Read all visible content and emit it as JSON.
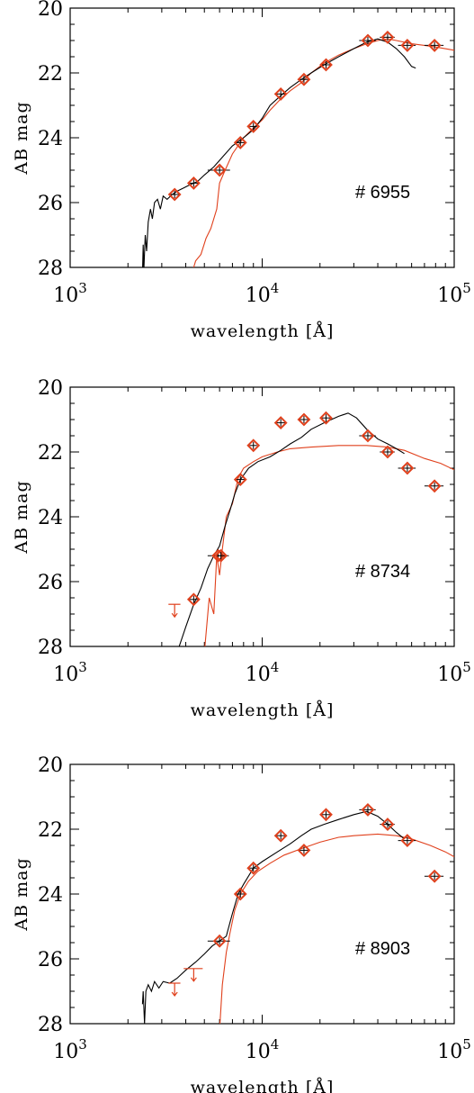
{
  "chart_data": [
    {
      "type": "line",
      "label": "# 6955",
      "xlabel": "wavelength [Å]",
      "ylabel": "AB mag",
      "xscale": "log",
      "xlim": [
        1000,
        100000
      ],
      "ylim": [
        28,
        20
      ],
      "x_ticks": [
        {
          "mantissa": "10",
          "exponent": "3",
          "value": 1000
        },
        {
          "mantissa": "10",
          "exponent": "4",
          "value": 10000
        },
        {
          "mantissa": "10",
          "exponent": "5",
          "value": 100000
        }
      ],
      "y_ticks": [
        "20",
        "22",
        "24",
        "26",
        "28"
      ],
      "colors": {
        "observed": "#000000",
        "model": "#e0401c"
      },
      "black_sed": [
        [
          2380,
          28.2
        ],
        [
          2400,
          27.3
        ],
        [
          2420,
          28.1
        ],
        [
          2460,
          27.0
        ],
        [
          2500,
          27.5
        ],
        [
          2550,
          26.6
        ],
        [
          2620,
          26.2
        ],
        [
          2680,
          26.5
        ],
        [
          2750,
          26.0
        ],
        [
          2850,
          25.9
        ],
        [
          2950,
          26.2
        ],
        [
          3050,
          25.8
        ],
        [
          3200,
          25.9
        ],
        [
          3400,
          25.75
        ],
        [
          3600,
          25.65
        ],
        [
          3900,
          25.55
        ],
        [
          4200,
          25.45
        ],
        [
          4600,
          25.35
        ],
        [
          5000,
          25.15
        ],
        [
          5600,
          24.9
        ],
        [
          6200,
          24.6
        ],
        [
          7000,
          24.25
        ],
        [
          8000,
          24.0
        ],
        [
          9000,
          23.75
        ],
        [
          10000,
          23.4
        ],
        [
          11000,
          23.0
        ],
        [
          12500,
          22.7
        ],
        [
          14000,
          22.45
        ],
        [
          16000,
          22.2
        ],
        [
          18000,
          22.0
        ],
        [
          21000,
          21.75
        ],
        [
          25000,
          21.5
        ],
        [
          30000,
          21.25
        ],
        [
          35000,
          21.05
        ],
        [
          40000,
          20.95
        ],
        [
          45000,
          21.05
        ],
        [
          50000,
          21.25
        ],
        [
          55000,
          21.5
        ],
        [
          60000,
          21.8
        ],
        [
          63000,
          21.85
        ]
      ],
      "red_sed": [
        [
          4300,
          28.2
        ],
        [
          4500,
          27.8
        ],
        [
          4800,
          27.6
        ],
        [
          5100,
          27.1
        ],
        [
          5400,
          26.8
        ],
        [
          5800,
          26.2
        ],
        [
          6000,
          25.4
        ],
        [
          6300,
          25.1
        ],
        [
          7000,
          24.5
        ],
        [
          8000,
          24.0
        ],
        [
          9000,
          23.7
        ],
        [
          10000,
          23.45
        ],
        [
          11000,
          23.15
        ],
        [
          12500,
          22.8
        ],
        [
          14000,
          22.55
        ],
        [
          16000,
          22.3
        ],
        [
          18000,
          22.0
        ],
        [
          21000,
          21.7
        ],
        [
          25000,
          21.45
        ],
        [
          30000,
          21.25
        ],
        [
          35000,
          21.1
        ],
        [
          40000,
          21.0
        ],
        [
          45000,
          20.95
        ],
        [
          50000,
          21.0
        ],
        [
          60000,
          21.1
        ],
        [
          70000,
          21.15
        ],
        [
          80000,
          21.2
        ],
        [
          100000,
          21.3
        ]
      ],
      "photometry": [
        {
          "x": 3500,
          "y": 25.75,
          "xerr": [
            3250,
            3750
          ]
        },
        {
          "x": 4400,
          "y": 25.4,
          "xerr": [
            4100,
            4700
          ]
        },
        {
          "x": 6000,
          "y": 25.0,
          "xerr": [
            5200,
            6800
          ]
        },
        {
          "x": 7700,
          "y": 24.15,
          "xerr": [
            7300,
            8100
          ]
        },
        {
          "x": 9000,
          "y": 23.65,
          "xerr": [
            8600,
            9400
          ]
        },
        {
          "x": 12500,
          "y": 22.65,
          "xerr": [
            11600,
            13400
          ]
        },
        {
          "x": 16500,
          "y": 22.2,
          "xerr": [
            15300,
            17700
          ]
        },
        {
          "x": 21500,
          "y": 21.75,
          "xerr": [
            20000,
            23000
          ]
        },
        {
          "x": 35500,
          "y": 21.0,
          "xerr": [
            32000,
            39000
          ]
        },
        {
          "x": 45000,
          "y": 20.9,
          "xerr": [
            41000,
            49000
          ]
        },
        {
          "x": 57000,
          "y": 21.15,
          "xerr": [
            51000,
            63000
          ]
        },
        {
          "x": 79000,
          "y": 21.15,
          "xerr": [
            70000,
            88000
          ]
        }
      ],
      "upper_limits": []
    },
    {
      "type": "line",
      "label": "# 8734",
      "xlabel": "wavelength [Å]",
      "ylabel": "AB mag",
      "xscale": "log",
      "xlim": [
        1000,
        100000
      ],
      "ylim": [
        28,
        20
      ],
      "x_ticks": [
        {
          "mantissa": "10",
          "exponent": "3",
          "value": 1000
        },
        {
          "mantissa": "10",
          "exponent": "4",
          "value": 10000
        },
        {
          "mantissa": "10",
          "exponent": "5",
          "value": 100000
        }
      ],
      "y_ticks": [
        "20",
        "22",
        "24",
        "26",
        "28"
      ],
      "colors": {
        "observed": "#000000",
        "model": "#e0401c"
      },
      "black_sed": [
        [
          3600,
          28.2
        ],
        [
          4000,
          27.4
        ],
        [
          4400,
          26.7
        ],
        [
          4800,
          26.2
        ],
        [
          5200,
          25.6
        ],
        [
          5600,
          25.2
        ],
        [
          6000,
          24.9
        ],
        [
          6400,
          24.3
        ],
        [
          6800,
          23.8
        ],
        [
          7200,
          23.3
        ],
        [
          7700,
          22.85
        ],
        [
          8500,
          22.5
        ],
        [
          9500,
          22.3
        ],
        [
          11000,
          22.15
        ],
        [
          12500,
          21.95
        ],
        [
          14000,
          21.75
        ],
        [
          16000,
          21.55
        ],
        [
          18000,
          21.3
        ],
        [
          21000,
          21.1
        ],
        [
          25000,
          20.9
        ],
        [
          28000,
          20.8
        ],
        [
          31000,
          20.95
        ],
        [
          35000,
          21.3
        ],
        [
          40000,
          21.6
        ],
        [
          45000,
          21.75
        ],
        [
          50000,
          21.9
        ],
        [
          55000,
          22.05
        ]
      ],
      "red_sed": [
        [
          5000,
          28.2
        ],
        [
          5300,
          26.5
        ],
        [
          5600,
          27.0
        ],
        [
          5800,
          25.2
        ],
        [
          6000,
          25.8
        ],
        [
          6200,
          25.0
        ],
        [
          6500,
          24.0
        ],
        [
          7000,
          23.6
        ],
        [
          7500,
          22.8
        ],
        [
          8000,
          22.5
        ],
        [
          9000,
          22.3
        ],
        [
          10000,
          22.15
        ],
        [
          12000,
          22.0
        ],
        [
          14000,
          21.9
        ],
        [
          18000,
          21.85
        ],
        [
          25000,
          21.8
        ],
        [
          35000,
          21.8
        ],
        [
          45000,
          21.85
        ],
        [
          55000,
          21.95
        ],
        [
          70000,
          22.2
        ],
        [
          85000,
          22.35
        ],
        [
          100000,
          22.55
        ]
      ],
      "photometry": [
        {
          "x": 4400,
          "y": 26.55,
          "xerr": [
            4100,
            4700
          ]
        },
        {
          "x": 5900,
          "y": 25.2,
          "xerr": [
            5200,
            6700
          ]
        },
        {
          "x": 6100,
          "y": 25.2,
          "xerr": [
            5800,
            6400
          ]
        },
        {
          "x": 7700,
          "y": 22.85,
          "xerr": [
            7300,
            8100
          ]
        },
        {
          "x": 9000,
          "y": 21.8,
          "xerr": [
            8600,
            9400
          ]
        },
        {
          "x": 12500,
          "y": 21.1,
          "xerr": [
            11600,
            13400
          ]
        },
        {
          "x": 16500,
          "y": 21.0,
          "xerr": [
            15300,
            17700
          ]
        },
        {
          "x": 21500,
          "y": 20.95,
          "xerr": [
            20000,
            23000
          ]
        },
        {
          "x": 35500,
          "y": 21.5,
          "xerr": [
            32000,
            39000
          ]
        },
        {
          "x": 45000,
          "y": 22.0,
          "xerr": [
            41000,
            49000
          ]
        },
        {
          "x": 57000,
          "y": 22.5,
          "xerr": [
            51000,
            63000
          ]
        },
        {
          "x": 79000,
          "y": 23.05,
          "xerr": [
            70000,
            88000
          ]
        }
      ],
      "upper_limits": [
        {
          "x": 3500,
          "y": 26.7,
          "xerr": [
            3250,
            3750
          ]
        }
      ]
    },
    {
      "type": "line",
      "label": "# 8903",
      "xlabel": "wavelength [Å]",
      "ylabel": "AB mag",
      "xscale": "log",
      "xlim": [
        1000,
        100000
      ],
      "ylim": [
        28,
        20
      ],
      "x_ticks": [
        {
          "mantissa": "10",
          "exponent": "3",
          "value": 1000
        },
        {
          "mantissa": "10",
          "exponent": "4",
          "value": 10000
        },
        {
          "mantissa": "10",
          "exponent": "5",
          "value": 100000
        }
      ],
      "y_ticks": [
        "20",
        "22",
        "24",
        "26",
        "28"
      ],
      "colors": {
        "observed": "#000000",
        "model": "#e0401c"
      },
      "black_sed": [
        [
          2380,
          27.4
        ],
        [
          2400,
          27.0
        ],
        [
          2440,
          28.0
        ],
        [
          2480,
          27.0
        ],
        [
          2550,
          26.8
        ],
        [
          2650,
          27.0
        ],
        [
          2750,
          26.7
        ],
        [
          2900,
          26.9
        ],
        [
          3050,
          26.7
        ],
        [
          3300,
          26.75
        ],
        [
          3600,
          26.6
        ],
        [
          4000,
          26.35
        ],
        [
          4500,
          26.1
        ],
        [
          5000,
          25.85
        ],
        [
          5500,
          25.6
        ],
        [
          6000,
          25.45
        ],
        [
          6500,
          25.3
        ],
        [
          7000,
          24.6
        ],
        [
          7500,
          24.0
        ],
        [
          8000,
          23.7
        ],
        [
          9000,
          23.2
        ],
        [
          10000,
          23.0
        ],
        [
          12000,
          22.7
        ],
        [
          14000,
          22.45
        ],
        [
          16000,
          22.2
        ],
        [
          18000,
          22.0
        ],
        [
          21000,
          21.85
        ],
        [
          25000,
          21.7
        ],
        [
          30000,
          21.55
        ],
        [
          35000,
          21.45
        ],
        [
          40000,
          21.6
        ],
        [
          45000,
          21.85
        ],
        [
          50000,
          22.1
        ],
        [
          55000,
          22.3
        ]
      ],
      "red_sed": [
        [
          6000,
          28.2
        ],
        [
          6200,
          26.8
        ],
        [
          6500,
          25.8
        ],
        [
          6800,
          25.2
        ],
        [
          7200,
          24.5
        ],
        [
          7700,
          24.0
        ],
        [
          8500,
          23.6
        ],
        [
          9500,
          23.3
        ],
        [
          11000,
          23.05
        ],
        [
          13000,
          22.8
        ],
        [
          16000,
          22.6
        ],
        [
          20000,
          22.4
        ],
        [
          25000,
          22.25
        ],
        [
          30000,
          22.2
        ],
        [
          40000,
          22.15
        ],
        [
          50000,
          22.2
        ],
        [
          60000,
          22.3
        ],
        [
          75000,
          22.5
        ],
        [
          90000,
          22.7
        ],
        [
          100000,
          22.85
        ]
      ],
      "photometry": [
        {
          "x": 6000,
          "y": 25.45,
          "xerr": [
            5200,
            6800
          ]
        },
        {
          "x": 7700,
          "y": 24.0,
          "xerr": [
            7300,
            8100
          ]
        },
        {
          "x": 9000,
          "y": 23.2,
          "xerr": [
            8600,
            9400
          ]
        },
        {
          "x": 12500,
          "y": 22.2,
          "xerr": [
            11600,
            13400
          ]
        },
        {
          "x": 16500,
          "y": 22.65,
          "xerr": [
            15300,
            17700
          ]
        },
        {
          "x": 21500,
          "y": 21.55,
          "xerr": [
            20000,
            23000
          ]
        },
        {
          "x": 35500,
          "y": 21.4,
          "xerr": [
            32000,
            39000
          ]
        },
        {
          "x": 45000,
          "y": 21.85,
          "xerr": [
            41000,
            49000
          ]
        },
        {
          "x": 57000,
          "y": 22.35,
          "xerr": [
            51000,
            63000
          ]
        },
        {
          "x": 79000,
          "y": 23.45,
          "xerr": [
            70000,
            88000
          ]
        }
      ],
      "upper_limits": [
        {
          "x": 3500,
          "y": 26.75,
          "xerr": [
            3250,
            3750
          ]
        },
        {
          "x": 4400,
          "y": 26.3,
          "xerr": [
            3900,
            4900
          ]
        }
      ]
    }
  ]
}
